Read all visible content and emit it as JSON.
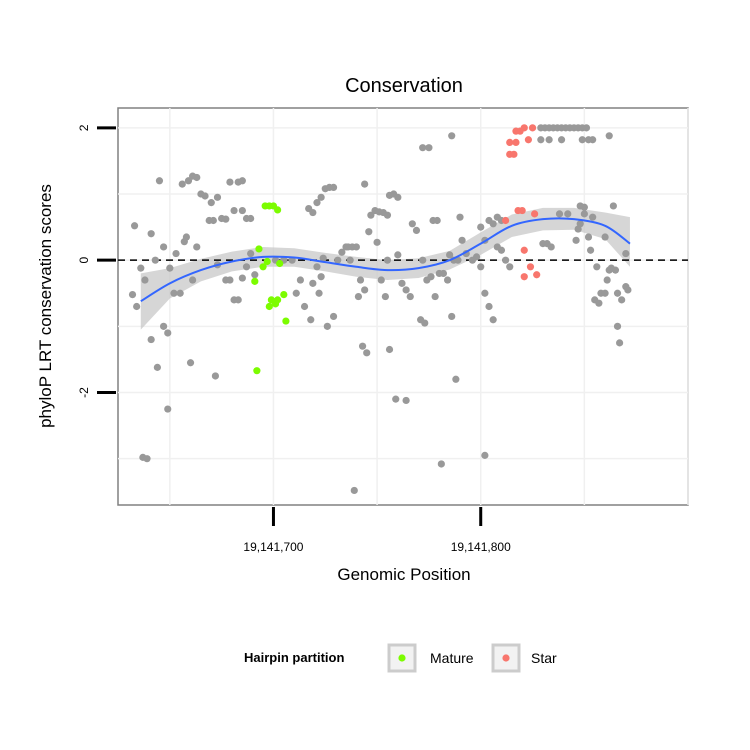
{
  "chart_data": {
    "type": "scatter",
    "title": "Conservation",
    "xlabel": "Genomic Position",
    "ylabel": "phyloP LRT conservation scores",
    "xlim": [
      19141625,
      19141900
    ],
    "ylim": [
      -3.7,
      2.3
    ],
    "x_ticks": [
      {
        "value": 19141700,
        "label": "19,141,700"
      },
      {
        "value": 19141800,
        "label": "19,141,800"
      }
    ],
    "y_ticks": [
      {
        "value": -2,
        "label": "-2"
      },
      {
        "value": 0,
        "label": "0"
      },
      {
        "value": 2,
        "label": "2"
      }
    ],
    "grid": true,
    "reference_line": {
      "y": 0,
      "style": "dashed"
    },
    "legend": {
      "title": "Hairpin partition",
      "position": "bottom",
      "entries": [
        {
          "label": "Mature",
          "color": "#7cfc00"
        },
        {
          "label": "Star",
          "color": "#f8766d"
        }
      ]
    },
    "colors": {
      "other": "#999999",
      "smooth": "#3366ff",
      "band": "#c8c8c8"
    },
    "smooth": {
      "x": [
        19141636,
        19141650,
        19141665,
        19141680,
        19141695,
        19141710,
        19141725,
        19141740,
        19141755,
        19141770,
        19141785,
        19141800,
        19141815,
        19141830,
        19141845,
        19141860,
        19141872
      ],
      "y": [
        -0.62,
        -0.35,
        -0.15,
        -0.02,
        0.05,
        0.04,
        -0.03,
        -0.1,
        -0.15,
        -0.12,
        0.0,
        0.25,
        0.52,
        0.62,
        0.62,
        0.52,
        0.25
      ],
      "lower": [
        -1.05,
        -0.58,
        -0.32,
        -0.17,
        -0.1,
        -0.1,
        -0.17,
        -0.25,
        -0.3,
        -0.27,
        -0.14,
        0.08,
        0.35,
        0.45,
        0.46,
        0.32,
        -0.1
      ],
      "upper": [
        -0.2,
        -0.12,
        0.02,
        0.13,
        0.2,
        0.18,
        0.11,
        0.05,
        0.0,
        0.03,
        0.14,
        0.42,
        0.69,
        0.79,
        0.79,
        0.72,
        0.65
      ]
    },
    "series": [
      {
        "name": "Mature",
        "color": "#7cfc00",
        "points": [
          [
            19141696,
            0.82
          ],
          [
            19141698,
            0.82
          ],
          [
            19141700,
            0.82
          ],
          [
            19141702,
            0.76
          ],
          [
            19141693,
            0.17
          ],
          [
            19141697,
            -0.02
          ],
          [
            19141695,
            -0.1
          ],
          [
            19141703,
            -0.05
          ],
          [
            19141691,
            -0.32
          ],
          [
            19141699,
            -0.6
          ],
          [
            19141701,
            -0.66
          ],
          [
            19141698,
            -0.7
          ],
          [
            19141702,
            -0.6
          ],
          [
            19141705,
            -0.52
          ],
          [
            19141706,
            -0.92
          ],
          [
            19141692,
            -1.67
          ]
        ]
      },
      {
        "name": "Star",
        "color": "#f8766d",
        "points": [
          [
            19141817,
            1.95
          ],
          [
            19141819,
            1.95
          ],
          [
            19141821,
            2.0
          ],
          [
            19141825,
            2.0
          ],
          [
            19141814,
            1.78
          ],
          [
            19141817,
            1.78
          ],
          [
            19141823,
            1.82
          ],
          [
            19141814,
            1.6
          ],
          [
            19141816,
            1.6
          ],
          [
            19141812,
            0.6
          ],
          [
            19141818,
            0.75
          ],
          [
            19141820,
            0.75
          ],
          [
            19141826,
            0.7
          ],
          [
            19141821,
            0.15
          ],
          [
            19141824,
            -0.1
          ],
          [
            19141821,
            -0.25
          ],
          [
            19141827,
            -0.22
          ]
        ]
      },
      {
        "points": [
          [
            19141633,
            0.52
          ],
          [
            19141632,
            -0.52
          ],
          [
            19141634,
            -0.7
          ],
          [
            19141636,
            -0.12
          ],
          [
            19141638,
            -0.3
          ],
          [
            19141641,
            0.4
          ],
          [
            19141643,
            0.0
          ],
          [
            19141637,
            -2.98
          ],
          [
            19141639,
            -3.0
          ],
          [
            19141645,
            1.2
          ],
          [
            19141641,
            -1.2
          ],
          [
            19141644,
            -1.62
          ],
          [
            19141647,
            -1.0
          ],
          [
            19141649,
            -1.1
          ],
          [
            19141647,
            0.2
          ],
          [
            19141650,
            -0.12
          ],
          [
            19141652,
            -0.5
          ],
          [
            19141653,
            0.1
          ],
          [
            19141655,
            -0.5
          ],
          [
            19141657,
            0.28
          ],
          [
            19141658,
            0.35
          ],
          [
            19141661,
            -0.3
          ],
          [
            19141656,
            1.15
          ],
          [
            19141659,
            1.2
          ],
          [
            19141661,
            1.27
          ],
          [
            19141663,
            1.25
          ],
          [
            19141660,
            -1.55
          ],
          [
            19141649,
            -2.25
          ],
          [
            19141663,
            0.2
          ],
          [
            19141665,
            1.0
          ],
          [
            19141667,
            0.97
          ],
          [
            19141670,
            0.87
          ],
          [
            19141673,
            0.95
          ],
          [
            19141669,
            0.6
          ],
          [
            19141671,
            0.6
          ],
          [
            19141673,
            -0.07
          ],
          [
            19141675,
            0.63
          ],
          [
            19141677,
            -0.3
          ],
          [
            19141679,
            -0.3
          ],
          [
            19141681,
            -0.6
          ],
          [
            19141683,
            -0.6
          ],
          [
            19141685,
            -0.27
          ],
          [
            19141687,
            -0.1
          ],
          [
            19141689,
            0.1
          ],
          [
            19141691,
            -0.22
          ],
          [
            19141672,
            -1.75
          ],
          [
            19141677,
            0.62
          ],
          [
            19141681,
            0.75
          ],
          [
            19141685,
            0.75
          ],
          [
            19141687,
            0.63
          ],
          [
            19141689,
            0.63
          ],
          [
            19141679,
            1.18
          ],
          [
            19141683,
            1.18
          ],
          [
            19141685,
            1.2
          ],
          [
            19141701,
            0.0
          ],
          [
            19141705,
            0.0
          ],
          [
            19141709,
            0.0
          ],
          [
            19141711,
            -0.5
          ],
          [
            19141713,
            -0.3
          ],
          [
            19141715,
            -0.7
          ],
          [
            19141717,
            0.78
          ],
          [
            19141719,
            0.72
          ],
          [
            19141721,
            0.87
          ],
          [
            19141723,
            0.95
          ],
          [
            19141725,
            1.08
          ],
          [
            19141727,
            1.1
          ],
          [
            19141729,
            1.1
          ],
          [
            19141721,
            -0.1
          ],
          [
            19141723,
            -0.25
          ],
          [
            19141724,
            0.03
          ],
          [
            19141719,
            -0.35
          ],
          [
            19141718,
            -0.9
          ],
          [
            19141722,
            -0.5
          ],
          [
            19141726,
            -1.0
          ],
          [
            19141729,
            -0.85
          ],
          [
            19141731,
            0.0
          ],
          [
            19141733,
            0.12
          ],
          [
            19141735,
            0.2
          ],
          [
            19141736,
            0.2
          ],
          [
            19141738,
            0.2
          ],
          [
            19141740,
            0.2
          ],
          [
            19141742,
            -0.3
          ],
          [
            19141744,
            -0.45
          ],
          [
            19141746,
            0.43
          ],
          [
            19141747,
            0.68
          ],
          [
            19141749,
            0.75
          ],
          [
            19141751,
            0.73
          ],
          [
            19141753,
            0.72
          ],
          [
            19141755,
            0.68
          ],
          [
            19141739,
            -3.48
          ],
          [
            19141737,
            0.0
          ],
          [
            19141741,
            -0.55
          ],
          [
            19141744,
            1.15
          ],
          [
            19141750,
            0.27
          ],
          [
            19141752,
            -0.3
          ],
          [
            19141754,
            -0.55
          ],
          [
            19141756,
            0.98
          ],
          [
            19141758,
            1.0
          ],
          [
            19141760,
            0.95
          ],
          [
            19141760,
            0.08
          ],
          [
            19141762,
            -0.35
          ],
          [
            19141764,
            -0.45
          ],
          [
            19141766,
            -0.55
          ],
          [
            19141755,
            0.0
          ],
          [
            19141743,
            -1.3
          ],
          [
            19141745,
            -1.4
          ],
          [
            19141756,
            -1.35
          ],
          [
            19141759,
            -2.1
          ],
          [
            19141764,
            -2.12
          ],
          [
            19141767,
            0.55
          ],
          [
            19141769,
            0.45
          ],
          [
            19141771,
            -0.9
          ],
          [
            19141773,
            -0.95
          ],
          [
            19141772,
            1.7
          ],
          [
            19141775,
            1.7
          ],
          [
            19141777,
            0.6
          ],
          [
            19141779,
            0.6
          ],
          [
            19141772,
            0.0
          ],
          [
            19141774,
            -0.3
          ],
          [
            19141776,
            -0.25
          ],
          [
            19141778,
            -0.55
          ],
          [
            19141780,
            -0.2
          ],
          [
            19141782,
            -0.2
          ],
          [
            19141784,
            -0.3
          ],
          [
            19141786,
            -0.85
          ],
          [
            19141785,
            0.08
          ],
          [
            19141787,
            0.0
          ],
          [
            19141789,
            0.0
          ],
          [
            19141791,
            0.3
          ],
          [
            19141793,
            0.1
          ],
          [
            19141788,
            -1.8
          ],
          [
            19141781,
            -3.08
          ],
          [
            19141802,
            -2.95
          ],
          [
            19141790,
            0.65
          ],
          [
            19141786,
            1.88
          ],
          [
            19141800,
            0.5
          ],
          [
            19141802,
            0.3
          ],
          [
            19141804,
            0.6
          ],
          [
            19141806,
            0.55
          ],
          [
            19141808,
            0.65
          ],
          [
            19141810,
            0.6
          ],
          [
            19141800,
            -0.1
          ],
          [
            19141802,
            -0.5
          ],
          [
            19141804,
            -0.7
          ],
          [
            19141806,
            -0.9
          ],
          [
            19141808,
            0.2
          ],
          [
            19141810,
            0.15
          ],
          [
            19141812,
            0.0
          ],
          [
            19141814,
            -0.1
          ],
          [
            19141796,
            0.0
          ],
          [
            19141798,
            0.05
          ],
          [
            19141829,
            2.0
          ],
          [
            19141831,
            2.0
          ],
          [
            19141833,
            2.0
          ],
          [
            19141835,
            2.0
          ],
          [
            19141837,
            2.0
          ],
          [
            19141839,
            2.0
          ],
          [
            19141841,
            2.0
          ],
          [
            19141843,
            2.0
          ],
          [
            19141845,
            2.0
          ],
          [
            19141847,
            2.0
          ],
          [
            19141849,
            2.0
          ],
          [
            19141851,
            2.0
          ],
          [
            19141829,
            1.82
          ],
          [
            19141833,
            1.82
          ],
          [
            19141839,
            1.82
          ],
          [
            19141849,
            1.82
          ],
          [
            19141852,
            1.82
          ],
          [
            19141854,
            1.82
          ],
          [
            19141862,
            1.88
          ],
          [
            19141830,
            0.25
          ],
          [
            19141832,
            0.25
          ],
          [
            19141834,
            0.2
          ],
          [
            19141838,
            0.7
          ],
          [
            19141842,
            0.7
          ],
          [
            19141848,
            0.82
          ],
          [
            19141850,
            0.7
          ],
          [
            19141846,
            0.3
          ],
          [
            19141847,
            0.47
          ],
          [
            19141848,
            0.55
          ],
          [
            19141850,
            0.8
          ],
          [
            19141854,
            0.65
          ],
          [
            19141852,
            0.35
          ],
          [
            19141856,
            -0.1
          ],
          [
            19141858,
            -0.5
          ],
          [
            19141860,
            -0.5
          ],
          [
            19141861,
            -0.3
          ],
          [
            19141863,
            -0.12
          ],
          [
            19141865,
            -0.15
          ],
          [
            19141862,
            -0.15
          ],
          [
            19141864,
            0.82
          ],
          [
            19141866,
            -0.5
          ],
          [
            19141868,
            -0.6
          ],
          [
            19141870,
            -0.4
          ],
          [
            19141867,
            -1.25
          ],
          [
            19141866,
            -1.0
          ],
          [
            19141870,
            0.1
          ],
          [
            19141871,
            -0.45
          ],
          [
            19141855,
            -0.6
          ],
          [
            19141853,
            0.15
          ],
          [
            19141857,
            -0.65
          ],
          [
            19141860,
            0.35
          ]
        ]
      }
    ]
  }
}
